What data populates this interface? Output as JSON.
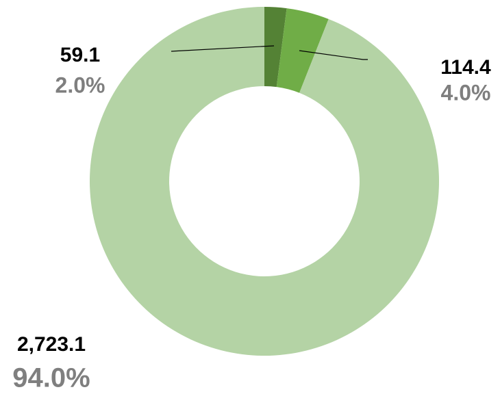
{
  "chart_data": {
    "type": "donut",
    "values": [
      59.1,
      114.4,
      2723.1
    ],
    "value_labels": [
      "59.1",
      "114.4",
      "2,723.1"
    ],
    "percents": [
      2.0,
      4.0,
      94.0
    ],
    "percent_labels": [
      "2.0%",
      "4.0%",
      "94.0%"
    ],
    "colors": [
      "#548235",
      "#70ad47",
      "#b4d3a5"
    ]
  }
}
